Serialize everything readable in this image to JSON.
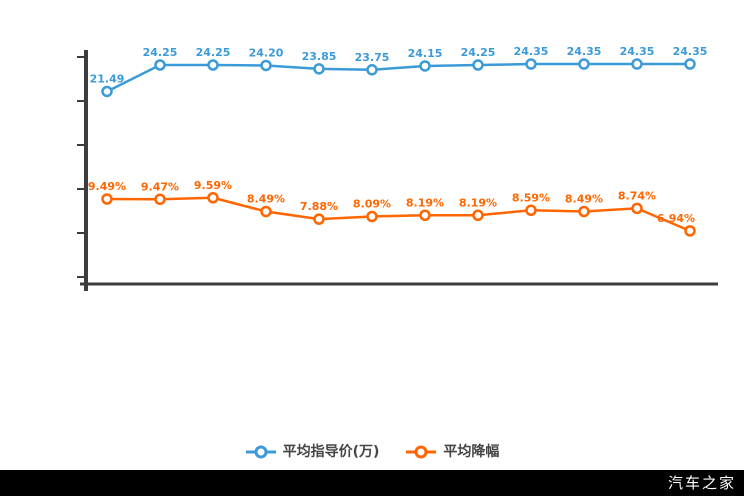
{
  "footer": {
    "brand": "汽车之家"
  },
  "colors": {
    "price_series": "#3b9ad8",
    "discount_series": "#ff6600",
    "axis": "#3d3d3d",
    "legend_text": "#464646",
    "footer_bg": "#000000",
    "footer_text": "#ffffff",
    "background": "#ffffff"
  },
  "legend": {
    "items": [
      {
        "label": "平均指导价(万)",
        "color": "#3b9ad8"
      },
      {
        "label": "平均降幅",
        "color": "#ff6600"
      }
    ]
  },
  "chart_data": {
    "type": "line",
    "title": "",
    "xlabel": "",
    "ylabel": "",
    "x_axis_labels_visible": false,
    "y_axis_labels_visible": false,
    "y_tick_count": 6,
    "grid": false,
    "legend_position": "bottom",
    "point_count": 12,
    "series": [
      {
        "name": "平均指导价(万)",
        "color": "#3b9ad8",
        "unit": "万",
        "marker": "hollow-circle",
        "values": [
          21.49,
          24.25,
          24.25,
          24.2,
          23.85,
          23.75,
          24.15,
          24.25,
          24.35,
          24.35,
          24.35,
          24.35
        ],
        "labels": [
          "21.49",
          "24.25",
          "24.25",
          "24.20",
          "23.85",
          "23.75",
          "24.15",
          "24.25",
          "24.35",
          "24.35",
          "24.35",
          "24.35"
        ]
      },
      {
        "name": "平均降幅",
        "color": "#ff6600",
        "unit": "%",
        "marker": "hollow-circle",
        "values": [
          9.49,
          9.47,
          9.59,
          8.49,
          7.88,
          8.09,
          8.19,
          8.19,
          8.59,
          8.49,
          8.74,
          6.94
        ],
        "labels": [
          "9.49%",
          "9.47%",
          "9.59%",
          "8.49%",
          "7.88%",
          "8.09%",
          "8.19%",
          "8.19%",
          "8.59%",
          "8.49%",
          "8.74%",
          "6.94%"
        ]
      }
    ]
  }
}
